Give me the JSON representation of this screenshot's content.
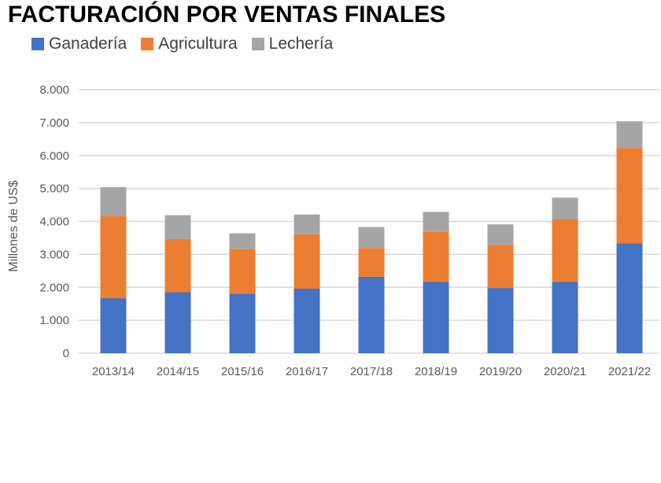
{
  "chart_data": {
    "type": "bar",
    "stacked": true,
    "title": "FACTURACIÓN POR VENTAS FINALES",
    "xlabel": "",
    "ylabel": "Millones de US$",
    "ylim": [
      0,
      8000
    ],
    "yticks": [
      "0",
      "1.000",
      "2.000",
      "3.000",
      "4.000",
      "5.000",
      "6.000",
      "7.000",
      "8.000"
    ],
    "grid": true,
    "legend": "top-left",
    "categories": [
      "2013/14",
      "2014/15",
      "2015/16",
      "2016/17",
      "2017/18",
      "2018/19",
      "2019/20",
      "2020/21",
      "2021/22"
    ],
    "series": [
      {
        "name": "Ganadería",
        "color": "#4472C4",
        "values": [
          1670,
          1850,
          1810,
          1960,
          2320,
          2170,
          1980,
          2170,
          3330
        ]
      },
      {
        "name": "Agricultura",
        "color": "#ED7D31",
        "values": [
          2500,
          1620,
          1360,
          1650,
          870,
          1510,
          1310,
          1890,
          2900
        ]
      },
      {
        "name": "Lechería",
        "color": "#A5A5A5",
        "values": [
          870,
          720,
          470,
          600,
          640,
          610,
          620,
          660,
          810
        ]
      }
    ]
  }
}
